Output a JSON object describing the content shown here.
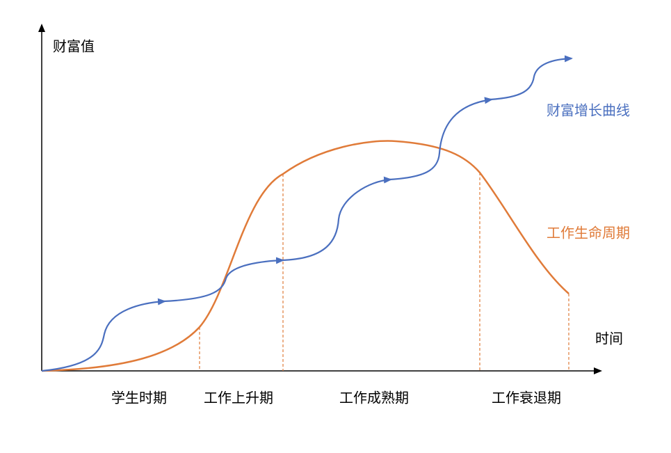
{
  "y_axis_label": "财富值",
  "x_axis_label": "时间",
  "curves": [
    {
      "label": "财富增长曲线"
    },
    {
      "label": "工作生命周期"
    }
  ],
  "phases": [
    "学生时期",
    "工作上升期",
    "工作成熟期",
    "工作衰退期"
  ]
}
